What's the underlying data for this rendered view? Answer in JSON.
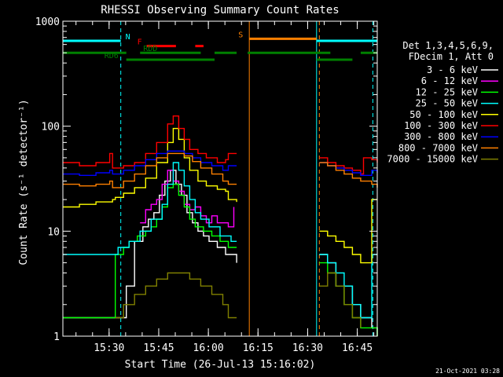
{
  "chart_data": {
    "type": "line",
    "title": "RHESSI Observing Summary Count Rates",
    "xlabel": "Start Time (26-Jul-13 15:16:02)",
    "ylabel": "Count Rate (s⁻¹ detector⁻¹)",
    "y_log": true,
    "ylim": [
      1,
      1000
    ],
    "xlim": [
      0,
      5700
    ],
    "x_units": "seconds after 15:16:02",
    "x_ticks": [
      {
        "label": "15:30",
        "x": 838
      },
      {
        "label": "15:45",
        "x": 1738
      },
      {
        "label": "16:00",
        "x": 2638
      },
      {
        "label": "16:15",
        "x": 3538
      },
      {
        "label": "16:30",
        "x": 4438
      },
      {
        "label": "16:45",
        "x": 5338
      }
    ],
    "y_ticks": [
      {
        "label": "1",
        "v": 1
      },
      {
        "label": "10",
        "v": 10
      },
      {
        "label": "100",
        "v": 100
      },
      {
        "label": "1000",
        "v": 1000
      }
    ],
    "legend": {
      "position": "right",
      "header": [
        "Det 1,3,4,5,6,9,",
        "FDecim 1, Att 0"
      ]
    },
    "timestamp": "21-Oct-2021 03:28",
    "series": [
      {
        "name": "3 - 6 keV",
        "color": "#ffffff",
        "x": [
          0,
          400,
          800,
          1000,
          1150,
          1300,
          1450,
          1550,
          1650,
          1750,
          1850,
          1950,
          2050,
          2150,
          2250,
          2350,
          2450,
          2550,
          2650,
          2800,
          2950,
          3150,
          3400,
          3750,
          3850,
          4000,
          4150,
          4300,
          4400,
          4550,
          4650,
          4800,
          4950,
          5100,
          5250,
          5400,
          5600,
          5700
        ],
        "y": [
          1.5,
          1.5,
          1.5,
          1.5,
          3,
          8,
          11,
          13,
          15,
          22,
          30,
          38,
          28,
          22,
          15,
          12,
          10,
          9,
          8,
          7,
          6,
          5,
          null,
          null,
          null,
          null,
          null,
          null,
          null,
          null,
          6,
          5,
          3,
          3,
          2,
          1.5,
          1.2,
          1
        ]
      },
      {
        "name": "6 - 12 keV",
        "color": "#ff00ff",
        "x": [
          1400,
          1500,
          1600,
          1700,
          1800,
          1900,
          2000,
          2100,
          2200,
          2300,
          2400,
          2500,
          2600,
          2700,
          2800,
          2900,
          3000,
          3100
        ],
        "y": [
          12,
          16,
          18,
          20,
          28,
          38,
          30,
          24,
          18,
          16,
          17,
          14,
          12,
          14,
          12,
          12,
          11,
          17
        ]
      },
      {
        "name": "12 - 25 keV",
        "color": "#00ff00",
        "x": [
          0,
          300,
          600,
          900,
          950,
          1100,
          1200,
          1350,
          1500,
          1600,
          1700,
          1800,
          1900,
          2000,
          2100,
          2200,
          2300,
          2400,
          2550,
          2700,
          2850,
          3000,
          3150,
          3400,
          3750,
          3850,
          4000,
          4150,
          4300,
          4400,
          4550,
          4650,
          4800,
          4950,
          5100,
          5250,
          5400,
          5600,
          5700
        ],
        "y": [
          1.5,
          1.5,
          1.5,
          1.5,
          6,
          7,
          8,
          9,
          10,
          11,
          13,
          17,
          26,
          28,
          22,
          17,
          13,
          11,
          10,
          9,
          8,
          7,
          7,
          null,
          null,
          null,
          null,
          null,
          null,
          null,
          null,
          5,
          4,
          3,
          2,
          1.5,
          1.2,
          1.2,
          1
        ]
      },
      {
        "name": "25 - 50 keV",
        "color": "#00ffff",
        "x": [
          0,
          300,
          600,
          850,
          1000,
          1200,
          1400,
          1600,
          1800,
          1900,
          2000,
          2100,
          2200,
          2300,
          2400,
          2500,
          2650,
          2850,
          3050,
          3150,
          3400,
          3750,
          3850,
          4000,
          4150,
          4300,
          4400,
          4550,
          4650,
          4800,
          4950,
          5100,
          5250,
          5400,
          5600,
          5700
        ],
        "y": [
          6,
          6,
          6,
          6,
          7,
          8,
          10,
          13,
          18,
          28,
          45,
          38,
          27,
          20,
          15,
          13,
          11,
          9,
          8,
          8,
          null,
          null,
          null,
          null,
          null,
          null,
          null,
          null,
          6,
          5,
          4,
          3,
          2,
          1.5,
          6,
          6
        ]
      },
      {
        "name": "50 - 100 keV",
        "color": "#ffff00",
        "x": [
          0,
          300,
          600,
          900,
          950,
          1100,
          1300,
          1500,
          1700,
          1900,
          2000,
          2100,
          2200,
          2300,
          2450,
          2600,
          2800,
          2950,
          3000,
          3150,
          3400,
          3750,
          3850,
          4000,
          4150,
          4300,
          4400,
          4550,
          4650,
          4800,
          4950,
          5100,
          5250,
          5400,
          5600,
          5700
        ],
        "y": [
          17,
          18,
          19,
          20,
          21,
          23,
          26,
          32,
          45,
          70,
          95,
          75,
          50,
          38,
          30,
          27,
          25,
          24,
          20,
          19,
          null,
          null,
          null,
          null,
          null,
          null,
          null,
          null,
          10,
          9,
          8,
          7,
          6,
          5,
          20,
          20
        ]
      },
      {
        "name": "100 - 300 keV",
        "color": "#ff0000",
        "x": [
          0,
          300,
          600,
          850,
          900,
          1100,
          1300,
          1500,
          1700,
          1900,
          2000,
          2100,
          2200,
          2300,
          2450,
          2600,
          2800,
          2950,
          3000,
          3150,
          3400,
          3750,
          3850,
          4000,
          4150,
          4300,
          4400,
          4550,
          4650,
          4800,
          4950,
          5100,
          5250,
          5400,
          5450,
          5600,
          5700
        ],
        "y": [
          45,
          42,
          45,
          55,
          40,
          42,
          45,
          55,
          70,
          105,
          125,
          95,
          75,
          60,
          55,
          50,
          45,
          48,
          55,
          55,
          null,
          null,
          null,
          null,
          null,
          null,
          null,
          null,
          50,
          45,
          42,
          40,
          38,
          35,
          50,
          48,
          45
        ]
      },
      {
        "name": "300 - 800 keV",
        "color": "#0000ff",
        "x": [
          0,
          300,
          600,
          850,
          900,
          1100,
          1300,
          1500,
          1700,
          1900,
          2050,
          2200,
          2350,
          2500,
          2700,
          2900,
          3000,
          3150,
          3400,
          3750,
          3850,
          4000,
          4150,
          4300,
          4400,
          4550,
          4650,
          4800,
          4950,
          5100,
          5250,
          5400,
          5600,
          5700
        ],
        "y": [
          35,
          34,
          36,
          38,
          35,
          38,
          42,
          48,
          55,
          58,
          58,
          55,
          50,
          45,
          42,
          38,
          42,
          42,
          null,
          null,
          null,
          null,
          null,
          null,
          null,
          null,
          45,
          42,
          40,
          38,
          36,
          34,
          38,
          36
        ]
      },
      {
        "name": "800 - 7000 keV",
        "color": "#ff8000",
        "x": [
          0,
          300,
          600,
          850,
          900,
          1100,
          1300,
          1500,
          1700,
          1900,
          2050,
          2200,
          2350,
          2500,
          2700,
          2900,
          3000,
          3150,
          3400,
          3750,
          3850,
          4000,
          4150,
          4300,
          4400,
          4550,
          4650,
          4800,
          4950,
          5100,
          5250,
          5400,
          5600,
          5700
        ],
        "y": [
          28,
          27,
          28,
          30,
          26,
          30,
          35,
          42,
          50,
          55,
          55,
          52,
          46,
          40,
          35,
          30,
          28,
          28,
          null,
          null,
          null,
          null,
          null,
          null,
          null,
          null,
          45,
          42,
          38,
          35,
          32,
          30,
          28,
          26
        ]
      },
      {
        "name": "7000 - 15000 keV",
        "color": "#808000",
        "x": [
          0,
          300,
          600,
          900,
          950,
          1100,
          1300,
          1500,
          1700,
          1900,
          2100,
          2300,
          2500,
          2700,
          2900,
          3000,
          3150,
          3400,
          3750,
          3850,
          4000,
          4150,
          4300,
          4400,
          4550,
          4650,
          4800,
          4950,
          5100,
          5250,
          5400,
          5600,
          5700
        ],
        "y": [
          null,
          null,
          null,
          null,
          1.5,
          2,
          2.5,
          3,
          3.5,
          4,
          4,
          3.5,
          3,
          2.5,
          2,
          1.5,
          1.5,
          null,
          null,
          null,
          null,
          null,
          null,
          null,
          null,
          3,
          4,
          3,
          2,
          1.5,
          1.2,
          null,
          null
        ]
      }
    ],
    "annotations": {
      "flag_rows": [
        {
          "name": "N",
          "color": "#00ffff",
          "y": 650,
          "spans": [
            [
              0,
              1050
            ],
            [
              4600,
              5700
            ]
          ]
        },
        {
          "name": "F",
          "color": "#ff0000",
          "y": 580,
          "spans": [
            [
              1520,
              2050
            ],
            [
              2400,
              2550
            ]
          ]
        },
        {
          "name": "RDD",
          "color": "#008000",
          "y": 500,
          "spans": [
            [
              0,
              1150
            ],
            [
              1400,
              2500
            ],
            [
              2750,
              3150
            ],
            [
              3350,
              4850
            ],
            [
              5400,
              5700
            ]
          ]
        },
        {
          "name": "RD6",
          "color": "#008000",
          "y": 430,
          "spans": [
            [
              1150,
              2750
            ],
            [
              4600,
              5250
            ]
          ]
        },
        {
          "name": "S",
          "color": "#ff8000",
          "y": 680,
          "spans": [
            [
              3380,
              4600
            ]
          ]
        }
      ],
      "vertical_lines": [
        {
          "x": 0,
          "color": "#00ffff",
          "style": "solid"
        },
        {
          "x": 1050,
          "color": "#00ffff",
          "style": "dashed"
        },
        {
          "x": 3380,
          "color": "#ff8000",
          "style": "solid"
        },
        {
          "x": 4600,
          "color": "#00ffff",
          "style": "solid"
        },
        {
          "x": 4650,
          "color": "#ff8000",
          "style": "dashed"
        },
        {
          "x": 5620,
          "color": "#00ffff",
          "style": "dashed"
        }
      ]
    }
  }
}
